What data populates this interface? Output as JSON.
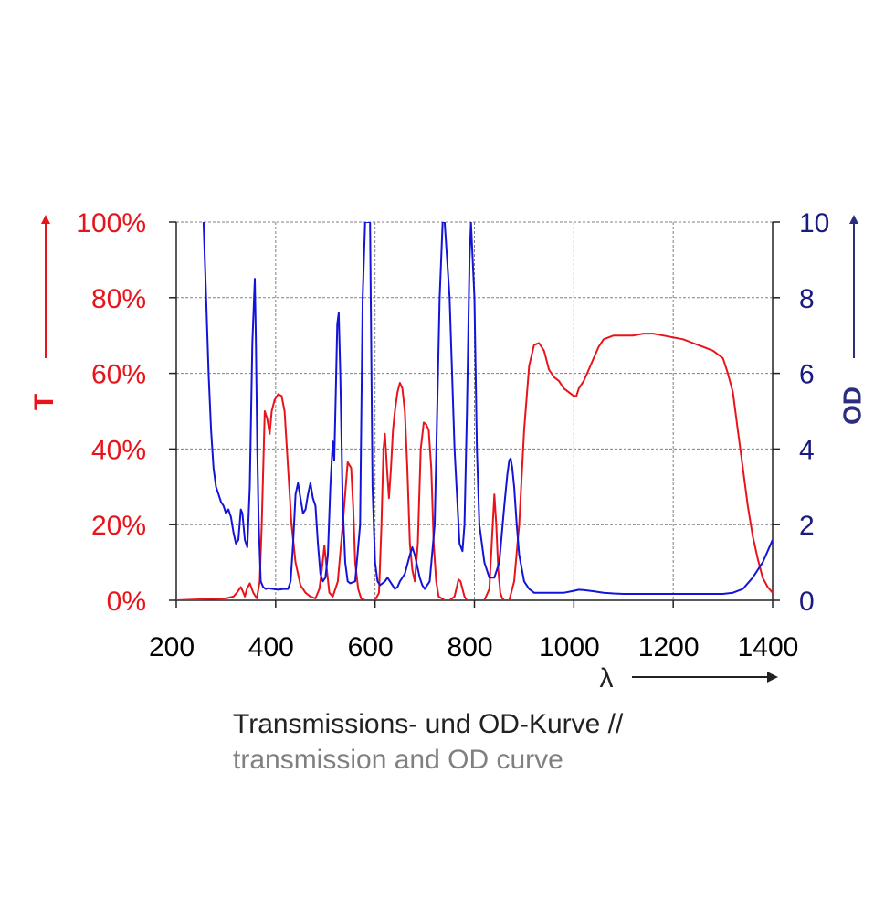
{
  "colors": {
    "transmission": "#e8141b",
    "od": "#1414d8",
    "od_label": "#2d2d80",
    "text": "#222222",
    "subtitle": "#808080",
    "grid": "#808080"
  },
  "caption": {
    "de": "Transmissions- und OD-Kurve //",
    "en": "transmission and OD curve"
  },
  "chart_data": {
    "type": "line",
    "title": "",
    "xlabel": "λ",
    "ylabel": "T",
    "y2label": "OD",
    "xlim": [
      200,
      1400
    ],
    "ylim": [
      0,
      100
    ],
    "y2lim": [
      0,
      10
    ],
    "x_ticks": [
      "200",
      "400",
      "600",
      "800",
      "1000",
      "1200",
      "1400"
    ],
    "y_ticks": [
      "0%",
      "20%",
      "40%",
      "60%",
      "80%",
      "100%"
    ],
    "y2_ticks": [
      "0",
      "2",
      "4",
      "6",
      "8",
      "10"
    ],
    "grid": true,
    "series": [
      {
        "axis": "left",
        "color": "#e8141b",
        "x": [
          200,
          300,
          315,
          322,
          330,
          335,
          338,
          342,
          348,
          355,
          362,
          368,
          372,
          378,
          383,
          388,
          392,
          398,
          405,
          412,
          418,
          425,
          432,
          440,
          450,
          460,
          470,
          480,
          488,
          493,
          498,
          503,
          508,
          515,
          525,
          535,
          545,
          552,
          556,
          560,
          566,
          572,
          580,
          590,
          600,
          608,
          613,
          617,
          620,
          624,
          628,
          632,
          636,
          640,
          645,
          650,
          655,
          660,
          665,
          670,
          675,
          680,
          686,
          692,
          698,
          703,
          708,
          713,
          718,
          723,
          728,
          734,
          740,
          750,
          760,
          768,
          772,
          776,
          780,
          785,
          790,
          800,
          810,
          820,
          830,
          836,
          840,
          844,
          848,
          852,
          856,
          860,
          870,
          880,
          890,
          900,
          910,
          920,
          930,
          940,
          950,
          960,
          970,
          980,
          990,
          1000,
          1005,
          1010,
          1020,
          1030,
          1040,
          1050,
          1060,
          1080,
          1100,
          1120,
          1140,
          1160,
          1180,
          1200,
          1220,
          1240,
          1260,
          1280,
          1300,
          1310,
          1320,
          1330,
          1340,
          1350,
          1360,
          1370,
          1380,
          1390,
          1400
        ],
        "y": [
          0,
          0.5,
          1,
          2,
          3.5,
          2,
          1,
          3,
          4.5,
          2,
          0.5,
          5,
          20,
          50,
          48,
          44,
          50,
          53,
          54.5,
          54,
          50,
          35,
          20,
          10,
          4,
          2,
          1,
          0.5,
          3,
          8,
          14.5,
          8,
          2,
          1,
          5,
          20,
          36.5,
          35,
          25,
          10,
          3,
          0.5,
          0,
          0,
          0,
          2,
          20,
          40,
          44,
          35,
          27,
          35,
          45,
          50,
          55,
          57.5,
          56,
          50,
          35,
          15,
          8,
          5,
          15,
          40,
          47,
          46.5,
          45,
          35,
          15,
          5,
          1,
          0.5,
          0,
          0,
          1,
          5.5,
          5,
          3,
          1,
          0,
          0,
          0,
          0,
          0,
          3,
          18,
          28,
          20,
          8,
          2,
          0.5,
          0,
          0,
          5,
          20,
          45,
          62,
          67.5,
          68,
          66,
          61,
          59,
          58,
          56,
          55,
          54,
          54,
          56,
          58,
          61,
          64,
          67,
          69,
          70,
          70,
          70,
          70.5,
          70.5,
          70,
          69.5,
          69,
          68,
          67,
          66,
          64,
          60,
          55,
          45,
          35,
          25,
          17,
          11,
          6,
          3.5,
          2
        ]
      },
      {
        "axis": "right",
        "color": "#1414d8",
        "x": [
          255,
          260,
          265,
          270,
          275,
          280,
          285,
          290,
          295,
          300,
          305,
          310,
          315,
          320,
          325,
          330,
          333,
          338,
          343,
          348,
          353,
          356,
          358,
          360,
          363,
          366,
          370,
          375,
          380,
          385,
          395,
          405,
          415,
          425,
          430,
          435,
          440,
          445,
          450,
          455,
          460,
          465,
          470,
          475,
          480,
          485,
          490,
          495,
          500,
          505,
          510,
          515,
          518,
          521,
          524,
          527,
          530,
          535,
          540,
          545,
          550,
          560,
          570,
          575,
          580,
          585,
          590,
          595,
          600,
          605,
          610,
          615,
          620,
          625,
          630,
          635,
          640,
          645,
          650,
          660,
          670,
          675,
          680,
          685,
          690,
          695,
          700,
          710,
          720,
          730,
          736,
          740,
          750,
          760,
          770,
          776,
          780,
          785,
          790,
          793,
          800,
          805,
          810,
          820,
          830,
          840,
          850,
          860,
          866,
          870,
          873,
          876,
          880,
          885,
          890,
          900,
          910,
          920,
          930,
          940,
          950,
          960,
          980,
          1000,
          1010,
          1020,
          1040,
          1060,
          1080,
          1100,
          1150,
          1200,
          1250,
          1280,
          1300,
          1320,
          1340,
          1360,
          1380,
          1400
        ],
        "y": [
          10,
          8,
          6,
          4.5,
          3.5,
          3,
          2.8,
          2.6,
          2.5,
          2.3,
          2.4,
          2.2,
          1.8,
          1.5,
          1.6,
          2.4,
          2.3,
          1.6,
          1.4,
          3,
          6.8,
          7.8,
          8.5,
          7,
          4,
          2,
          0.5,
          0.35,
          0.3,
          0.32,
          0.3,
          0.28,
          0.3,
          0.3,
          0.5,
          1.5,
          2.8,
          3.1,
          2.7,
          2.3,
          2.4,
          2.8,
          3.1,
          2.7,
          2.5,
          1.5,
          0.7,
          0.5,
          0.6,
          1.2,
          3,
          4.2,
          3.7,
          5.5,
          7.3,
          7.6,
          6,
          2.5,
          1,
          0.5,
          0.45,
          0.5,
          2,
          8,
          10,
          10,
          10,
          3,
          1,
          0.5,
          0.4,
          0.45,
          0.5,
          0.6,
          0.5,
          0.4,
          0.3,
          0.35,
          0.5,
          0.7,
          1.2,
          1.4,
          1.2,
          0.9,
          0.6,
          0.4,
          0.3,
          0.5,
          2,
          8,
          10,
          10,
          8,
          4,
          1.5,
          1.3,
          2,
          5,
          9,
          10,
          8,
          4,
          2,
          1,
          0.6,
          0.6,
          1,
          2.5,
          3.3,
          3.7,
          3.75,
          3.5,
          3,
          2,
          1.2,
          0.5,
          0.3,
          0.2,
          0.2,
          0.2,
          0.2,
          0.2,
          0.2,
          0.25,
          0.28,
          0.27,
          0.24,
          0.2,
          0.18,
          0.17,
          0.17,
          0.17,
          0.17,
          0.17,
          0.17,
          0.2,
          0.3,
          0.6,
          1.0,
          1.6
        ]
      }
    ]
  }
}
